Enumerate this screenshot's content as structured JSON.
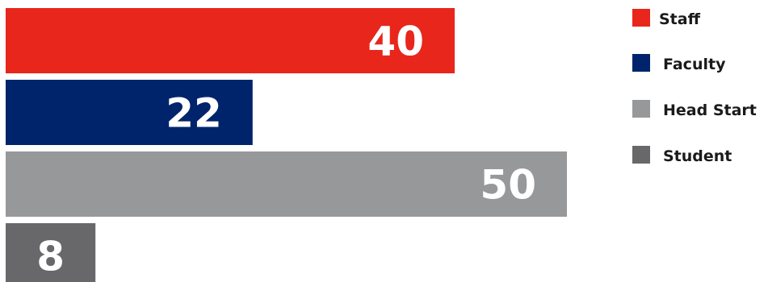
{
  "chart_data": {
    "type": "bar",
    "orientation": "horizontal",
    "title": "",
    "xlabel": "",
    "ylabel": "",
    "xlim": [
      0,
      50
    ],
    "grid": false,
    "legend_position": "right",
    "categories": [
      "Staff",
      "Faculty",
      "Head Start",
      "Student"
    ],
    "values": [
      40,
      22,
      50,
      8
    ],
    "colors": [
      "#e8261c",
      "#00246b",
      "#97989a",
      "#68686a"
    ],
    "data_labels": [
      "40",
      "22",
      "50",
      "8"
    ]
  }
}
